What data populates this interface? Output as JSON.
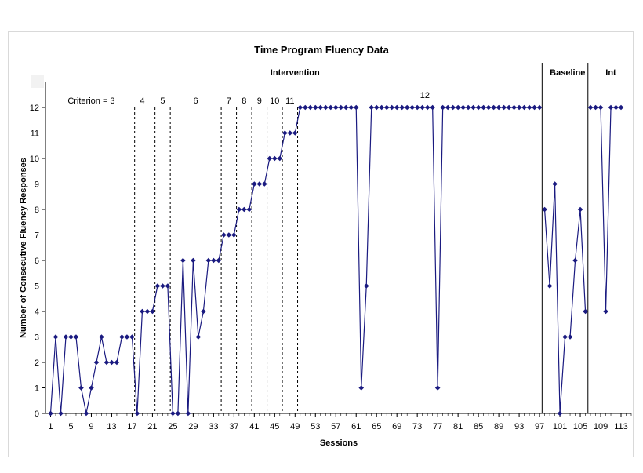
{
  "chart_data": {
    "type": "line",
    "title": "Time Program Fluency Data",
    "xlabel": "Sessions",
    "ylabel": "Number of Consecutive Fluency Responses",
    "xlim": [
      0,
      115
    ],
    "ylim": [
      0,
      12
    ],
    "x_ticks": [
      1,
      5,
      9,
      13,
      17,
      21,
      25,
      29,
      33,
      37,
      41,
      45,
      49,
      53,
      57,
      61,
      65,
      69,
      73,
      77,
      81,
      85,
      89,
      93,
      97,
      101,
      105,
      109,
      113
    ],
    "y_ticks": [
      0,
      1,
      2,
      3,
      4,
      5,
      6,
      7,
      8,
      9,
      10,
      11,
      12
    ],
    "color": "#1a1a80",
    "phases": [
      {
        "label": "Intervention",
        "x": 49
      },
      {
        "label": "Baseline",
        "x": 102.5
      },
      {
        "label": "Int",
        "x": 111
      }
    ],
    "phase_change_lines": [
      97.5,
      106.5
    ],
    "criterion_lines": [
      17.5,
      21.5,
      24.5,
      34.5,
      37.5,
      40.5,
      43.5,
      46.5,
      49.5
    ],
    "criterion_labels": [
      {
        "label": "Criterion = 3",
        "x": 9,
        "y": 12.3
      },
      {
        "label": "4",
        "x": 19,
        "y": 12.3
      },
      {
        "label": "5",
        "x": 23,
        "y": 12.3
      },
      {
        "label": "6",
        "x": 29.5,
        "y": 12.3
      },
      {
        "label": "7",
        "x": 36,
        "y": 12.3
      },
      {
        "label": "8",
        "x": 39,
        "y": 12.3
      },
      {
        "label": "9",
        "x": 42,
        "y": 12.3
      },
      {
        "label": "10",
        "x": 45,
        "y": 12.3
      },
      {
        "label": "11",
        "x": 48,
        "y": 12.3
      },
      {
        "label": "12",
        "x": 74.5,
        "y": 12.5
      }
    ],
    "segments": [
      {
        "x_start": 1,
        "values": [
          0,
          3,
          0,
          3,
          3,
          3,
          1,
          0,
          1,
          2,
          3,
          2,
          2,
          2,
          3,
          3,
          3,
          0,
          4,
          4,
          4,
          5,
          5,
          5,
          0,
          0,
          6,
          0,
          6,
          3,
          4,
          6,
          6,
          6,
          7,
          7,
          7,
          8,
          8,
          8,
          9,
          9,
          9,
          10,
          10,
          10,
          11,
          11,
          11,
          12,
          12,
          12,
          12,
          12,
          12,
          12,
          12,
          12,
          12,
          12,
          12,
          1,
          5,
          12,
          12,
          12,
          12,
          12,
          12,
          12,
          12,
          12,
          12,
          12,
          12,
          12,
          1,
          12,
          12,
          12,
          12,
          12,
          12,
          12,
          12,
          12,
          12,
          12,
          12,
          12,
          12,
          12,
          12,
          12,
          12,
          12,
          12
        ]
      },
      {
        "x_start": 98,
        "values": [
          8,
          5,
          9,
          0,
          3,
          3,
          6,
          8,
          4
        ]
      },
      {
        "x_start": 107,
        "values": [
          12,
          12,
          12,
          4,
          12,
          12,
          12
        ]
      }
    ]
  }
}
